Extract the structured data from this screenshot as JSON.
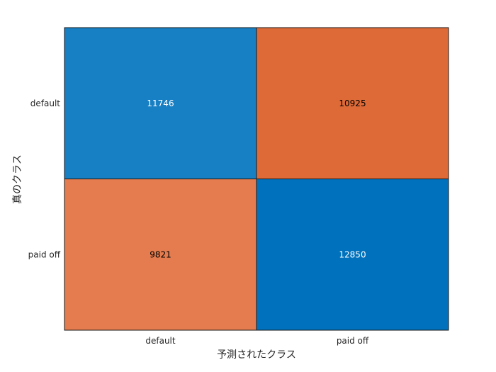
{
  "chart_data": {
    "type": "heatmap",
    "xlabel": "予測されたクラス",
    "ylabel": "真のクラス",
    "x_categories": [
      "default",
      "paid off"
    ],
    "y_categories": [
      "default",
      "paid off"
    ],
    "matrix": [
      [
        11746,
        10925
      ],
      [
        9821,
        12850
      ]
    ],
    "colors": {
      "diag_strong": "#0072bd",
      "diag_mid": "#177fc3",
      "off_strong": "#de6a38",
      "off_mid": "#e47c4f",
      "border": "#1a1a1a",
      "text_dark": "#000000",
      "text_light": "#ffffff"
    }
  }
}
